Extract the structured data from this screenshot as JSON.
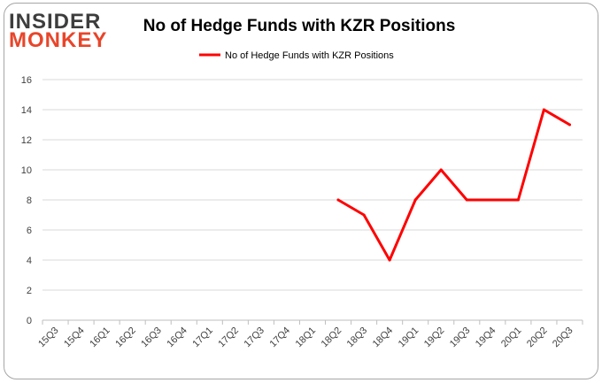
{
  "logo": {
    "line1": "INSIDER",
    "line2": "MONKEY"
  },
  "chart_data": {
    "type": "line",
    "title": "No of Hedge Funds with KZR Positions",
    "xlabel": "",
    "ylabel": "",
    "categories": [
      "15Q3",
      "15Q4",
      "16Q1",
      "16Q2",
      "16Q3",
      "16Q4",
      "17Q1",
      "17Q2",
      "17Q3",
      "17Q4",
      "18Q1",
      "18Q2",
      "18Q3",
      "18Q4",
      "19Q1",
      "19Q2",
      "19Q3",
      "19Q4",
      "20Q1",
      "20Q2",
      "20Q3"
    ],
    "series": [
      {
        "name": "No of Hedge Funds with KZR Positions",
        "color": "#ff0000",
        "values": [
          null,
          null,
          null,
          null,
          null,
          null,
          null,
          null,
          null,
          null,
          null,
          8,
          7,
          4,
          8,
          10,
          8,
          8,
          8,
          14,
          13
        ]
      }
    ],
    "ylim": [
      0,
      16
    ],
    "yticks": [
      "0",
      "2",
      "4",
      "6",
      "8",
      "10",
      "12",
      "14",
      "16"
    ],
    "grid": true,
    "legend": "top-center"
  }
}
